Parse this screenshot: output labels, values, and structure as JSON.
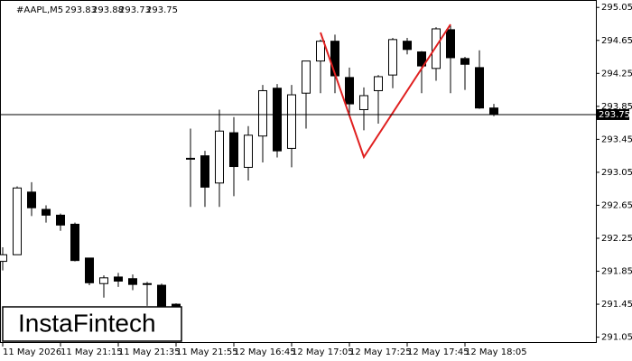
{
  "chart_data": {
    "type": "candlestick",
    "title": "#AAPL,M5",
    "ohlc": [
      293.83,
      293.88,
      293.73,
      293.75
    ],
    "watermark": "InstaFintech",
    "categories": [
      "11 May 2026",
      null,
      null,
      null,
      "11 May 21:15",
      null,
      null,
      null,
      "11 May 21:35",
      null,
      null,
      null,
      "11 May 21:55",
      null,
      null,
      null,
      "12 May 16:45",
      null,
      null,
      null,
      "12 May 17:05",
      null,
      null,
      null,
      "12 May 17:25",
      null,
      null,
      null,
      "12 May 17:45",
      null,
      null,
      null,
      "12 May 18:05",
      null,
      null
    ],
    "open": [
      291.97,
      292.05,
      292.81,
      292.6,
      292.53,
      292.42,
      292.01,
      291.7,
      291.78,
      291.76,
      291.7,
      291.68,
      291.45,
      293.22,
      293.25,
      292.92,
      293.53,
      293.11,
      293.49,
      294.07,
      293.34,
      294.01,
      294.4,
      294.64,
      294.2,
      293.81,
      294.04,
      294.23,
      294.64,
      294.51,
      294.31,
      294.78,
      294.43,
      294.32,
      293.83
    ],
    "high": [
      292.14,
      292.88,
      292.93,
      292.65,
      292.55,
      292.44,
      292.01,
      291.8,
      291.83,
      291.81,
      291.72,
      291.7,
      291.46,
      293.58,
      293.31,
      293.81,
      293.72,
      293.61,
      294.11,
      294.12,
      294.11,
      294.4,
      294.66,
      294.72,
      294.32,
      294.08,
      294.23,
      294.68,
      294.68,
      294.52,
      294.81,
      294.83,
      294.45,
      294.53,
      293.88
    ],
    "low": [
      291.86,
      292.05,
      292.52,
      292.44,
      292.34,
      291.97,
      291.68,
      291.53,
      291.66,
      291.62,
      291.43,
      291.31,
      291.37,
      292.63,
      292.63,
      292.63,
      292.76,
      292.95,
      293.17,
      293.23,
      293.11,
      293.58,
      294.01,
      294.01,
      293.72,
      293.56,
      293.64,
      294.07,
      294.48,
      294.01,
      294.16,
      294.01,
      294.05,
      293.82,
      293.73
    ],
    "close": [
      292.05,
      292.86,
      292.62,
      292.53,
      292.41,
      291.98,
      291.71,
      291.77,
      291.73,
      291.69,
      291.69,
      291.37,
      291.4,
      293.21,
      292.87,
      293.55,
      293.12,
      293.5,
      294.04,
      293.31,
      293.99,
      294.4,
      294.64,
      294.22,
      293.88,
      293.98,
      294.21,
      294.66,
      294.54,
      294.34,
      294.79,
      294.44,
      294.36,
      293.83,
      293.75
    ],
    "last_price": 293.75,
    "ylim": [
      290.98,
      295.14
    ],
    "yticks": [
      295.05,
      294.65,
      294.25,
      293.85,
      293.45,
      293.05,
      292.65,
      292.25,
      291.85,
      291.45,
      291.05
    ]
  }
}
